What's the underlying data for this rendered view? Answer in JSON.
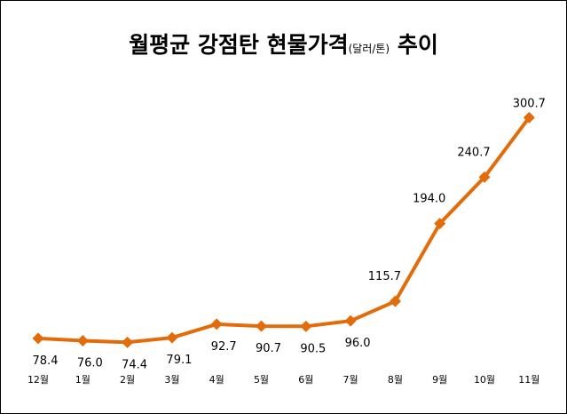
{
  "chart_data": {
    "type": "line",
    "title_main": "월평균 강점탄 현물가격",
    "title_unit": "(달러/톤)",
    "title_tail": "추이",
    "categories": [
      "12월",
      "1월",
      "2월",
      "3월",
      "4월",
      "5월",
      "6월",
      "7월",
      "8월",
      "9월",
      "10월",
      "11월"
    ],
    "values": [
      78.4,
      76.0,
      74.4,
      79.1,
      92.7,
      90.7,
      90.5,
      96.0,
      115.7,
      194.0,
      240.7,
      300.7
    ],
    "value_labels": [
      "78.4",
      "76.0",
      "74.4",
      "79.1",
      "92.7",
      "90.7",
      "90.5",
      "96.0",
      "115.7",
      "194.0",
      "240.7",
      "300.7"
    ],
    "ylim": [
      0,
      360
    ],
    "grid": false,
    "legend": "none",
    "series_color": "#E36C0A"
  }
}
